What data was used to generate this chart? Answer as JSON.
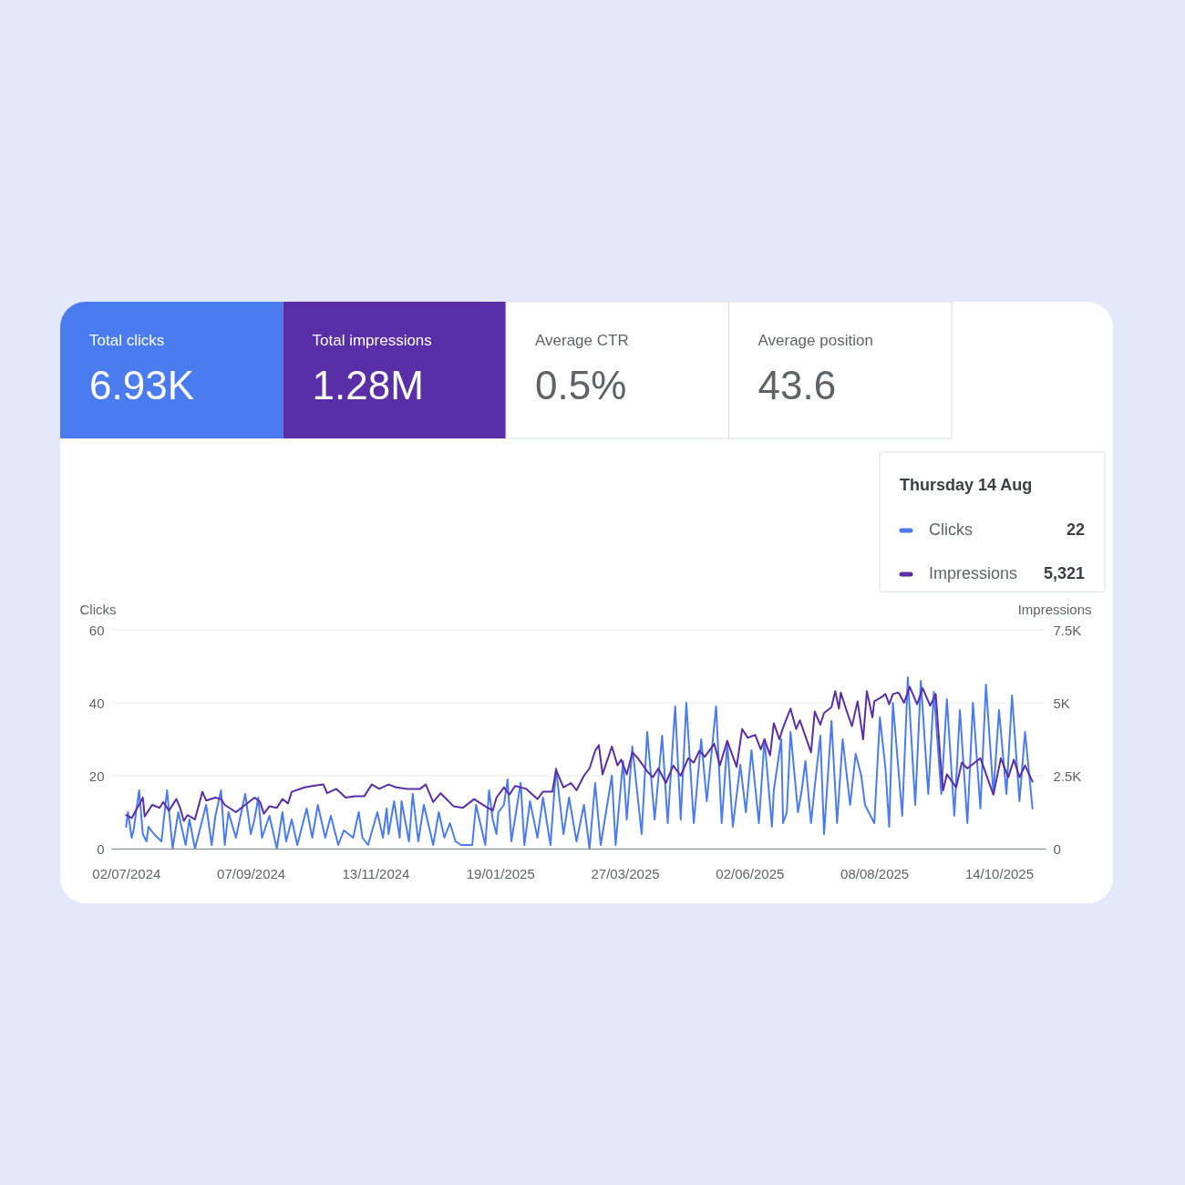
{
  "chart_data": [
    {
      "type": "other",
      "categories": [
        "Total clicks",
        "Total impressions",
        "Average CTR",
        "Average position"
      ],
      "value_labels": [
        "6.93K",
        "1.28M",
        "0.5%",
        "43.6"
      ],
      "colors": [
        "#4a7cef",
        "#5a2ea6",
        null,
        null
      ]
    },
    {
      "type": "line",
      "ylabel": "Clicks",
      "y2label": "Impressions",
      "legend": "top right",
      "legend_title": "Thursday 14 Aug",
      "annotations": [
        "22",
        "5,321"
      ],
      "grid": "y",
      "line_style": "solid",
      "xlim": [
        "2024-06-24",
        "2025-11-08"
      ],
      "xticks": [
        {
          "value": "2024-07-02",
          "label": "02/07/2024"
        },
        {
          "value": "2024-09-07",
          "label": "07/09/2024"
        },
        {
          "value": "2024-11-13",
          "label": "13/11/2024"
        },
        {
          "value": "2025-01-19",
          "label": "19/01/2025"
        },
        {
          "value": "2025-03-27",
          "label": "27/03/2025"
        },
        {
          "value": "2025-06-02",
          "label": "02/06/2025"
        },
        {
          "value": "2025-08-08",
          "label": "08/08/2025"
        },
        {
          "value": "2025-10-14",
          "label": "14/10/2025"
        }
      ],
      "ylim": [
        0,
        60
      ],
      "yticks": [
        0,
        20,
        40,
        60
      ],
      "y2lim": [
        0,
        7500
      ],
      "y2ticks": [
        0,
        {
          "value": 2500,
          "label": "2.5K"
        },
        {
          "value": 5000,
          "label": "5K"
        },
        {
          "value": 7500,
          "label": "7.5K"
        }
      ],
      "series": [
        {
          "name": "Clicks",
          "color": "#4a7cef",
          "x": [
            "2024-07-02",
            "2024-07-03",
            "2024-07-05",
            "2024-07-06",
            "2024-07-09",
            "2024-07-11",
            "2024-07-13",
            "2024-07-14",
            "2024-07-17",
            "2024-07-21",
            "2024-07-24",
            "2024-07-27",
            "2024-07-30",
            "2024-08-03",
            "2024-08-05",
            "2024-08-08",
            "2024-08-11",
            "2024-08-14",
            "2024-08-17",
            "2024-08-19",
            "2024-08-22",
            "2024-08-24",
            "2024-08-26",
            "2024-08-30",
            "2024-09-04",
            "2024-09-07",
            "2024-09-09",
            "2024-09-11",
            "2024-09-13",
            "2024-09-17",
            "2024-09-21",
            "2024-09-24",
            "2024-09-26",
            "2024-09-29",
            "2024-10-02",
            "2024-10-07",
            "2024-10-10",
            "2024-10-13",
            "2024-10-17",
            "2024-10-20",
            "2024-10-24",
            "2024-10-27",
            "2024-11-01",
            "2024-11-04",
            "2024-11-06",
            "2024-11-09",
            "2024-11-14",
            "2024-11-17",
            "2024-11-19",
            "2024-11-20",
            "2024-11-23",
            "2024-11-26",
            "2024-11-27",
            "2024-12-01",
            "2024-12-03",
            "2024-12-06",
            "2024-12-09",
            "2024-12-14",
            "2024-12-17",
            "2024-12-20",
            "2024-12-23",
            "2024-12-26",
            "2024-12-29",
            "2025-01-04",
            "2025-01-06",
            "2025-01-11",
            "2025-01-13",
            "2025-01-15",
            "2025-01-17",
            "2025-01-18",
            "2025-01-21",
            "2025-01-23",
            "2025-01-25",
            "2025-01-30",
            "2025-02-01",
            "2025-02-04",
            "2025-02-08",
            "2025-02-11",
            "2025-02-15",
            "2025-02-18",
            "2025-02-22",
            "2025-02-25",
            "2025-03-01",
            "2025-03-05",
            "2025-03-08",
            "2025-03-11",
            "2025-03-14",
            "2025-03-20",
            "2025-03-22",
            "2025-03-26",
            "2025-03-28",
            "2025-03-31",
            "2025-04-05",
            "2025-04-08",
            "2025-04-12",
            "2025-04-16",
            "2025-04-19",
            "2025-04-23",
            "2025-04-26",
            "2025-04-29",
            "2025-05-03",
            "2025-05-07",
            "2025-05-10",
            "2025-05-15",
            "2025-05-18",
            "2025-05-21",
            "2025-05-24",
            "2025-05-28",
            "2025-05-31",
            "2025-06-03",
            "2025-06-07",
            "2025-06-10",
            "2025-06-14",
            "2025-06-15",
            "2025-06-19",
            "2025-06-20",
            "2025-06-22",
            "2025-06-24",
            "2025-06-28",
            "2025-06-30",
            "2025-07-02",
            "2025-07-05",
            "2025-07-07",
            "2025-07-10",
            "2025-07-12",
            "2025-07-16",
            "2025-07-19",
            "2025-07-22",
            "2025-07-26",
            "2025-07-29",
            "2025-08-01",
            "2025-08-03",
            "2025-08-08",
            "2025-08-11",
            "2025-08-14",
            "2025-08-16",
            "2025-08-18",
            "2025-08-23",
            "2025-08-26",
            "2025-08-30",
            "2025-09-02",
            "2025-09-06",
            "2025-09-09",
            "2025-09-13",
            "2025-09-16",
            "2025-09-20",
            "2025-09-23",
            "2025-09-27",
            "2025-09-30",
            "2025-10-04",
            "2025-10-07",
            "2025-10-11",
            "2025-10-14",
            "2025-10-18",
            "2025-10-21",
            "2025-10-25",
            "2025-10-28",
            "2025-11-01"
          ],
          "values": [
            6,
            10,
            3,
            5,
            16,
            4,
            2,
            6,
            4,
            2,
            16,
            0,
            10,
            1,
            8,
            0,
            6,
            12,
            1,
            9,
            16,
            1,
            10,
            3,
            15,
            4,
            8,
            14,
            3,
            9,
            0,
            10,
            2,
            8,
            1,
            11,
            3,
            12,
            3,
            9,
            1,
            5,
            3,
            10,
            3,
            1,
            10,
            3,
            11,
            4,
            13,
            3,
            13,
            2,
            15,
            2,
            12,
            1,
            10,
            3,
            7,
            2,
            1,
            1,
            12,
            1,
            16,
            8,
            4,
            10,
            12,
            19,
            2,
            18,
            1,
            13,
            3,
            14,
            1,
            22,
            4,
            14,
            2,
            12,
            0,
            18,
            1,
            20,
            1,
            24,
            8,
            28,
            4,
            32,
            8,
            31,
            7,
            39,
            8,
            40,
            7,
            30,
            13,
            39,
            7,
            29,
            6,
            23,
            10,
            27,
            7,
            30,
            6,
            16,
            30,
            7,
            10,
            32,
            10,
            16,
            24,
            7,
            17,
            31,
            4,
            35,
            7,
            30,
            12,
            26,
            20,
            12,
            7,
            36,
            22,
            6,
            40,
            9,
            47,
            12,
            46,
            15,
            43,
            15,
            41,
            9,
            38,
            7,
            40,
            11,
            45,
            15,
            38,
            15,
            42,
            13,
            32,
            11
          ]
        },
        {
          "name": "Impressions",
          "color": "#5a2ea6",
          "axis": "y2",
          "x": [
            "2024-07-02",
            "2024-07-05",
            "2024-07-11",
            "2024-07-12",
            "2024-07-16",
            "2024-07-20",
            "2024-07-22",
            "2024-07-25",
            "2024-07-29",
            "2024-07-31",
            "2024-08-02",
            "2024-08-04",
            "2024-08-08",
            "2024-08-12",
            "2024-08-14",
            "2024-08-19",
            "2024-08-22",
            "2024-08-24",
            "2024-08-30",
            "2024-09-09",
            "2024-09-12",
            "2024-09-14",
            "2024-09-17",
            "2024-09-21",
            "2024-09-24",
            "2024-09-27",
            "2024-09-29",
            "2024-10-06",
            "2024-10-10",
            "2024-10-16",
            "2024-10-18",
            "2024-10-23",
            "2024-10-28",
            "2024-11-02",
            "2024-11-07",
            "2024-11-11",
            "2024-11-15",
            "2024-11-20",
            "2024-11-24",
            "2024-11-30",
            "2024-12-07",
            "2024-12-10",
            "2024-12-14",
            "2024-12-18",
            "2024-12-25",
            "2024-12-30",
            "2025-01-05",
            "2025-01-11",
            "2025-01-15",
            "2025-01-17",
            "2025-01-21",
            "2025-01-24",
            "2025-01-27",
            "2025-02-02",
            "2025-02-08",
            "2025-02-11",
            "2025-02-16",
            "2025-02-18",
            "2025-02-22",
            "2025-02-26",
            "2025-03-01",
            "2025-03-05",
            "2025-03-08",
            "2025-03-11",
            "2025-03-13",
            "2025-03-15",
            "2025-03-20",
            "2025-03-23",
            "2025-03-25",
            "2025-03-28",
            "2025-03-31",
            "2025-04-03",
            "2025-04-08",
            "2025-04-11",
            "2025-04-14",
            "2025-04-18",
            "2025-04-22",
            "2025-04-26",
            "2025-04-30",
            "2025-05-03",
            "2025-05-06",
            "2025-05-09",
            "2025-05-14",
            "2025-05-17",
            "2025-05-21",
            "2025-05-26",
            "2025-05-29",
            "2025-06-01",
            "2025-06-05",
            "2025-06-08",
            "2025-06-10",
            "2025-06-13",
            "2025-06-15",
            "2025-06-18",
            "2025-06-20",
            "2025-06-24",
            "2025-06-27",
            "2025-06-29",
            "2025-07-05",
            "2025-07-07",
            "2025-07-10",
            "2025-07-12",
            "2025-07-16",
            "2025-07-18",
            "2025-07-20",
            "2025-07-21",
            "2025-07-24",
            "2025-07-27",
            "2025-07-30",
            "2025-08-02",
            "2025-08-04",
            "2025-08-07",
            "2025-08-08",
            "2025-08-12",
            "2025-08-14",
            "2025-08-16",
            "2025-08-18",
            "2025-08-21",
            "2025-08-24",
            "2025-08-27",
            "2025-08-31",
            "2025-09-03",
            "2025-09-07",
            "2025-09-10",
            "2025-09-13",
            "2025-09-14",
            "2025-09-16",
            "2025-09-21",
            "2025-09-24",
            "2025-09-27",
            "2025-10-04",
            "2025-10-11",
            "2025-10-15",
            "2025-10-19",
            "2025-10-22",
            "2025-10-25",
            "2025-10-28",
            "2025-11-01"
          ],
          "values": [
            1150,
            1050,
            1750,
            1100,
            1500,
            1400,
            1600,
            1300,
            1700,
            1400,
            950,
            1150,
            1000,
            1950,
            1650,
            1750,
            1700,
            1500,
            1250,
            1750,
            1600,
            1200,
            1450,
            1400,
            1700,
            1550,
            1950,
            2100,
            2150,
            2200,
            1900,
            2050,
            1750,
            1800,
            1800,
            2200,
            2050,
            2200,
            2100,
            2050,
            2050,
            2200,
            1600,
            1900,
            1450,
            1400,
            1700,
            1450,
            1300,
            1750,
            2100,
            1850,
            2150,
            2050,
            1700,
            1950,
            1950,
            2700,
            2100,
            2250,
            2000,
            2500,
            2750,
            3350,
            3550,
            2550,
            3500,
            2850,
            3050,
            2550,
            3300,
            3100,
            2650,
            2450,
            2750,
            2250,
            2850,
            2500,
            3100,
            2950,
            3350,
            3150,
            3600,
            2850,
            3700,
            2800,
            4100,
            3800,
            3900,
            3400,
            3750,
            3200,
            4300,
            3750,
            4150,
            4800,
            4100,
            4400,
            3300,
            4700,
            4250,
            4650,
            4850,
            5400,
            4800,
            5350,
            4750,
            4200,
            5050,
            3750,
            5400,
            4500,
            5050,
            5200,
            5300,
            4950,
            5300,
            5350,
            5000,
            5550,
            4950,
            5500,
            4900,
            5300,
            2650,
            2000,
            2550,
            2100,
            2950,
            2750,
            3100,
            1850,
            3100,
            2450,
            3050,
            2450,
            2850,
            2300
          ]
        }
      ]
    }
  ]
}
